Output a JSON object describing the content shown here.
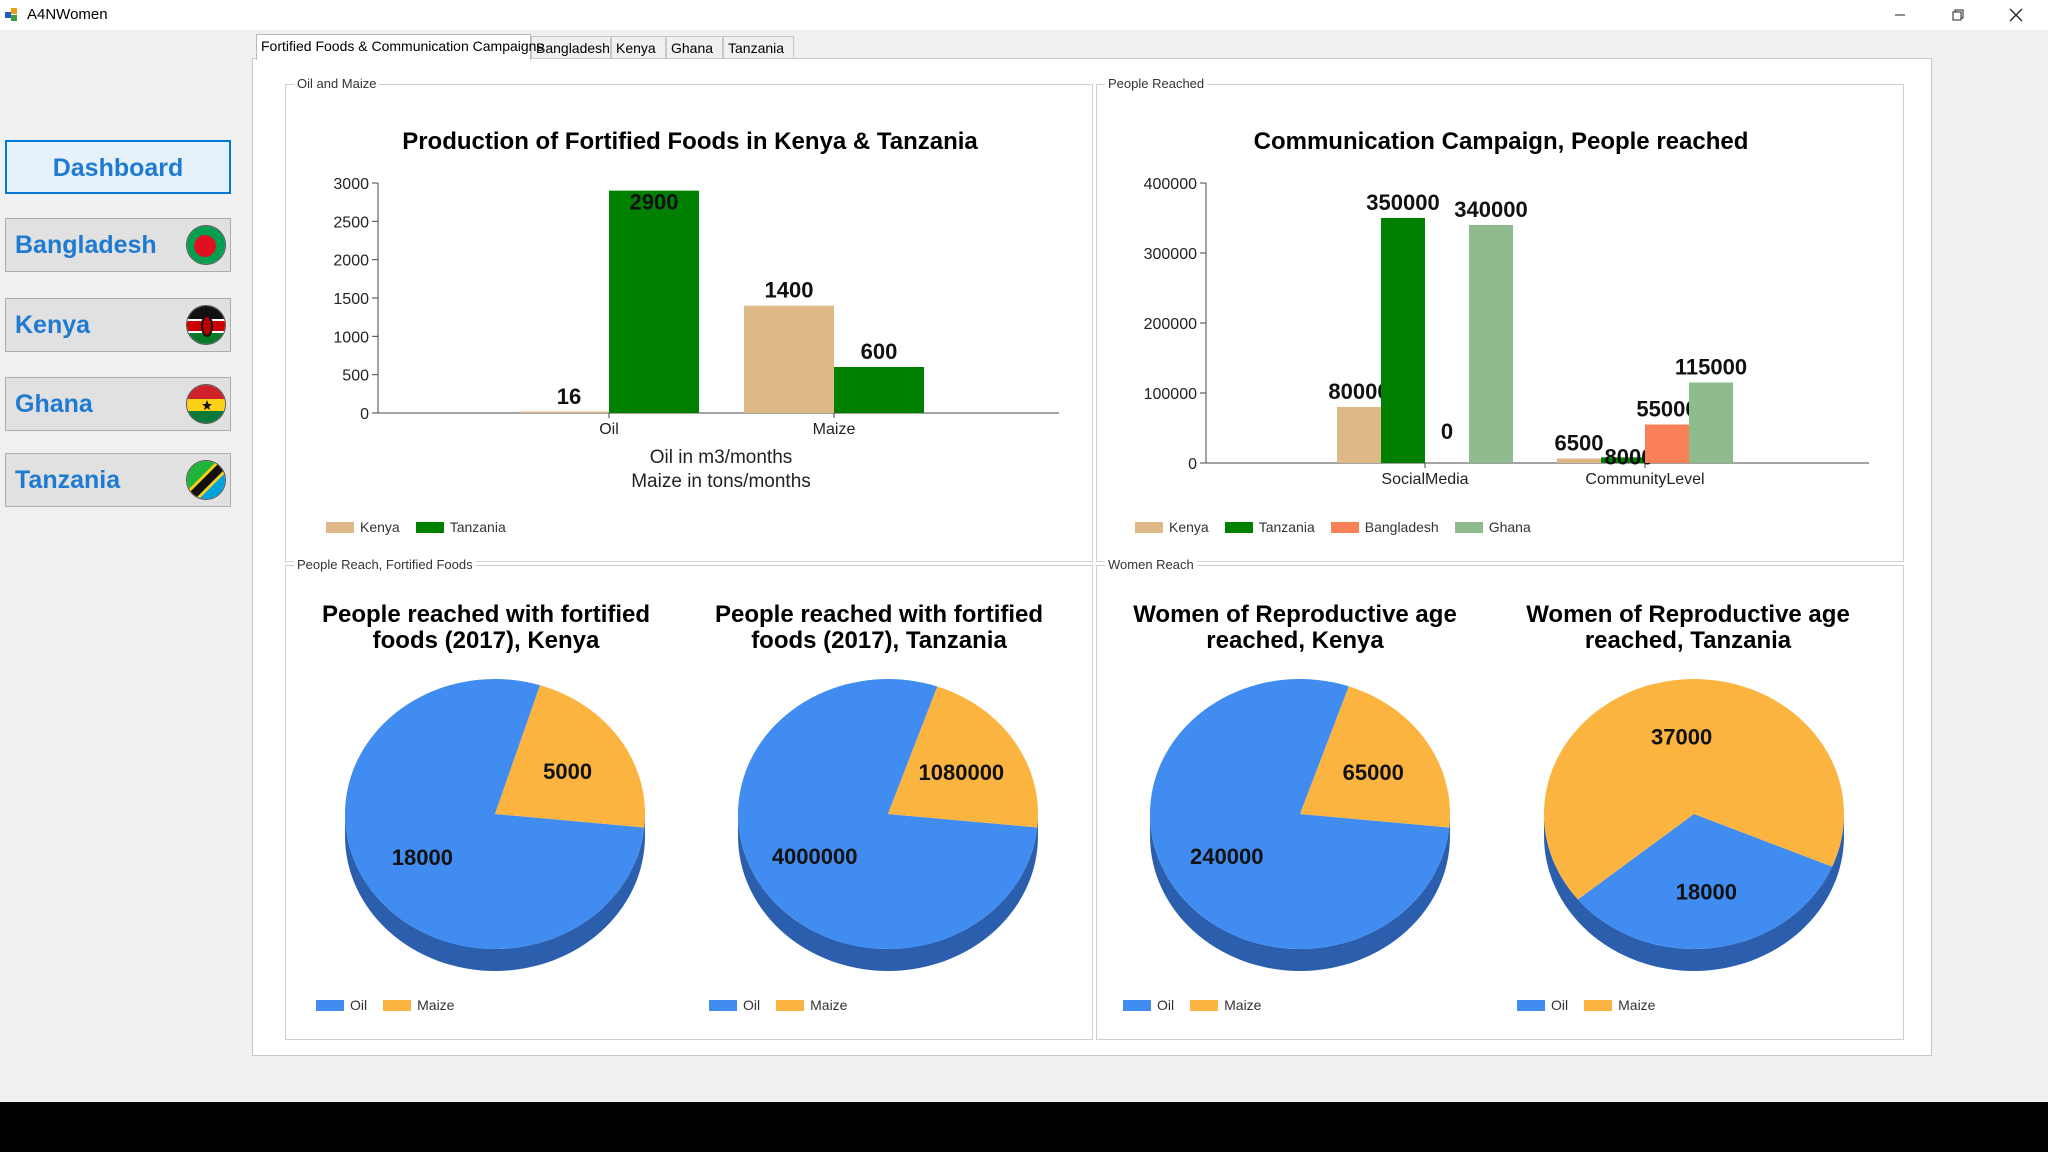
{
  "window": {
    "title": "A4NWomen"
  },
  "sidebar": {
    "dashboard": "Dashboard",
    "items": [
      {
        "label": "Bangladesh"
      },
      {
        "label": "Kenya"
      },
      {
        "label": "Ghana"
      },
      {
        "label": "Tanzania"
      }
    ]
  },
  "tabs": [
    {
      "label": "Fortified Foods & Communication Campaigns"
    },
    {
      "label": "Bangladesh"
    },
    {
      "label": "Kenya"
    },
    {
      "label": "Ghana"
    },
    {
      "label": "Tanzania"
    }
  ],
  "groups": {
    "oil_maize": "Oil and Maize",
    "people_reached": "People Reached",
    "people_reach_fortified": "People Reach, Fortified Foods",
    "women_reach": "Women Reach"
  },
  "colors": {
    "Kenya": "#deb887",
    "Tanzania": "#008000",
    "Bangladesh": "#fa8057",
    "Ghana": "#8fbc8f",
    "Oil": "#418cf0",
    "Maize": "#fcb441"
  },
  "chart_data": [
    {
      "id": "production",
      "type": "bar",
      "title": "Production of Fortified Foods in Kenya & Tanzania",
      "xlabel": "Oil in m3/months\nMaize in tons/months",
      "categories": [
        "Oil",
        "Maize"
      ],
      "series": [
        {
          "name": "Kenya",
          "values": [
            16,
            1400
          ]
        },
        {
          "name": "Tanzania",
          "values": [
            2900,
            600
          ]
        }
      ],
      "ylim": [
        0,
        3000
      ],
      "yticks": [
        0,
        500,
        1000,
        1500,
        2000,
        2500,
        3000
      ],
      "legend": "bottom-left"
    },
    {
      "id": "campaign",
      "type": "bar",
      "title": "Communication Campaign, People reached",
      "categories": [
        "SocialMedia",
        "CommunityLevel"
      ],
      "series": [
        {
          "name": "Kenya",
          "values": [
            80000,
            6500
          ]
        },
        {
          "name": "Tanzania",
          "values": [
            350000,
            8000
          ]
        },
        {
          "name": "Bangladesh",
          "values": [
            0,
            55000
          ]
        },
        {
          "name": "Ghana",
          "values": [
            340000,
            115000
          ]
        }
      ],
      "ylim": [
        0,
        400000
      ],
      "yticks": [
        0,
        100000,
        200000,
        300000,
        400000
      ],
      "legend": "bottom-left"
    },
    {
      "id": "pie_kenya_food",
      "type": "pie",
      "title": "People reached with fortified foods (2017), Kenya",
      "slices": [
        {
          "name": "Oil",
          "value": 18000
        },
        {
          "name": "Maize",
          "value": 5000
        }
      ]
    },
    {
      "id": "pie_tanzania_food",
      "type": "pie",
      "title": "People reached with fortified foods (2017), Tanzania",
      "slices": [
        {
          "name": "Oil",
          "value": 4000000
        },
        {
          "name": "Maize",
          "value": 1080000
        }
      ]
    },
    {
      "id": "pie_kenya_women",
      "type": "pie",
      "title": "Women of Reproductive age reached, Kenya",
      "slices": [
        {
          "name": "Oil",
          "value": 240000
        },
        {
          "name": "Maize",
          "value": 65000
        }
      ]
    },
    {
      "id": "pie_tanzania_women",
      "type": "pie",
      "title": "Women of Reproductive age reached, Tanzania",
      "slices": [
        {
          "name": "Oil",
          "value": 18000
        },
        {
          "name": "Maize",
          "value": 37000
        }
      ]
    }
  ]
}
